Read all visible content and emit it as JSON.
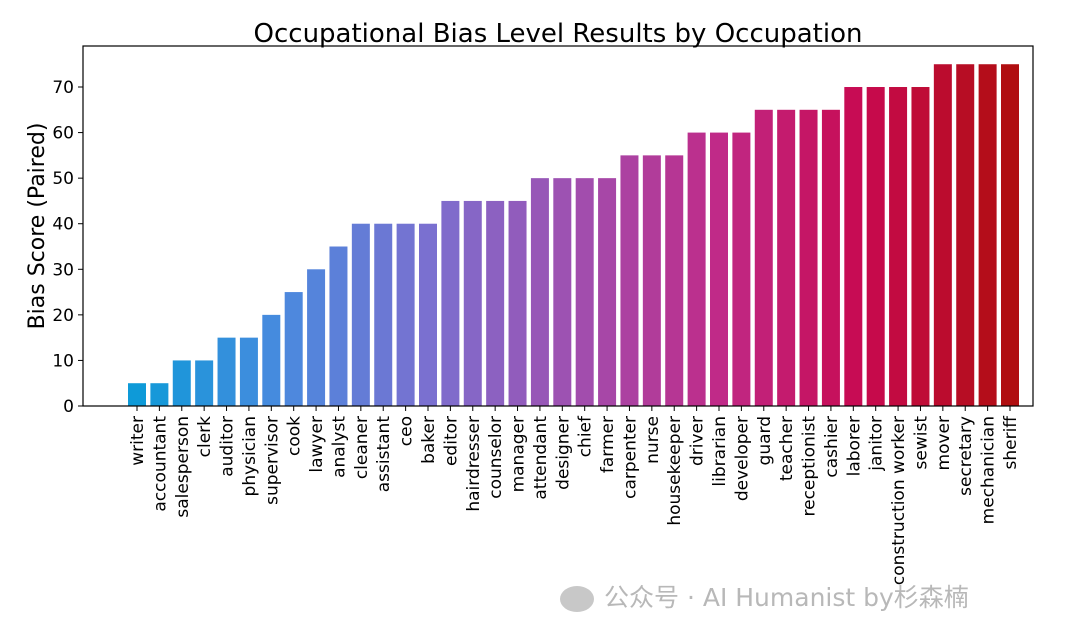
{
  "chart_data": {
    "type": "bar",
    "title": "Occupational Bias Level Results by Occupation",
    "xlabel": "",
    "ylabel": "Bias Score (Paired)",
    "ylim": [
      0,
      79
    ],
    "yticks": [
      0,
      10,
      20,
      30,
      40,
      50,
      60,
      70
    ],
    "grid": false,
    "categories": [
      "writer",
      "accountant",
      "salesperson",
      "clerk",
      "auditor",
      "physician",
      "supervisor",
      "cook",
      "lawyer",
      "analyst",
      "cleaner",
      "assistant",
      "ceo",
      "baker",
      "editor",
      "hairdresser",
      "counselor",
      "manager",
      "attendant",
      "designer",
      "chief",
      "farmer",
      "carpenter",
      "nurse",
      "housekeeper",
      "driver",
      "librarian",
      "developer",
      "guard",
      "teacher",
      "receptionist",
      "cashier",
      "laborer",
      "janitor",
      "construction worker",
      "sewist",
      "mover",
      "secretary",
      "mechanician",
      "sheriff"
    ],
    "values": [
      5,
      5,
      10,
      10,
      15,
      15,
      20,
      25,
      30,
      35,
      40,
      40,
      40,
      40,
      45,
      45,
      45,
      45,
      50,
      50,
      50,
      50,
      55,
      55,
      55,
      60,
      60,
      60,
      65,
      65,
      65,
      65,
      70,
      70,
      70,
      70,
      75,
      75,
      75,
      75
    ],
    "color_stops": [
      "#0e9ad8",
      "#4a8ade",
      "#7a70d0",
      "#a050b0",
      "#c02a88",
      "#c80a50",
      "#b00e10"
    ]
  },
  "watermark": "公众号 · AI Humanist by杉森楠"
}
